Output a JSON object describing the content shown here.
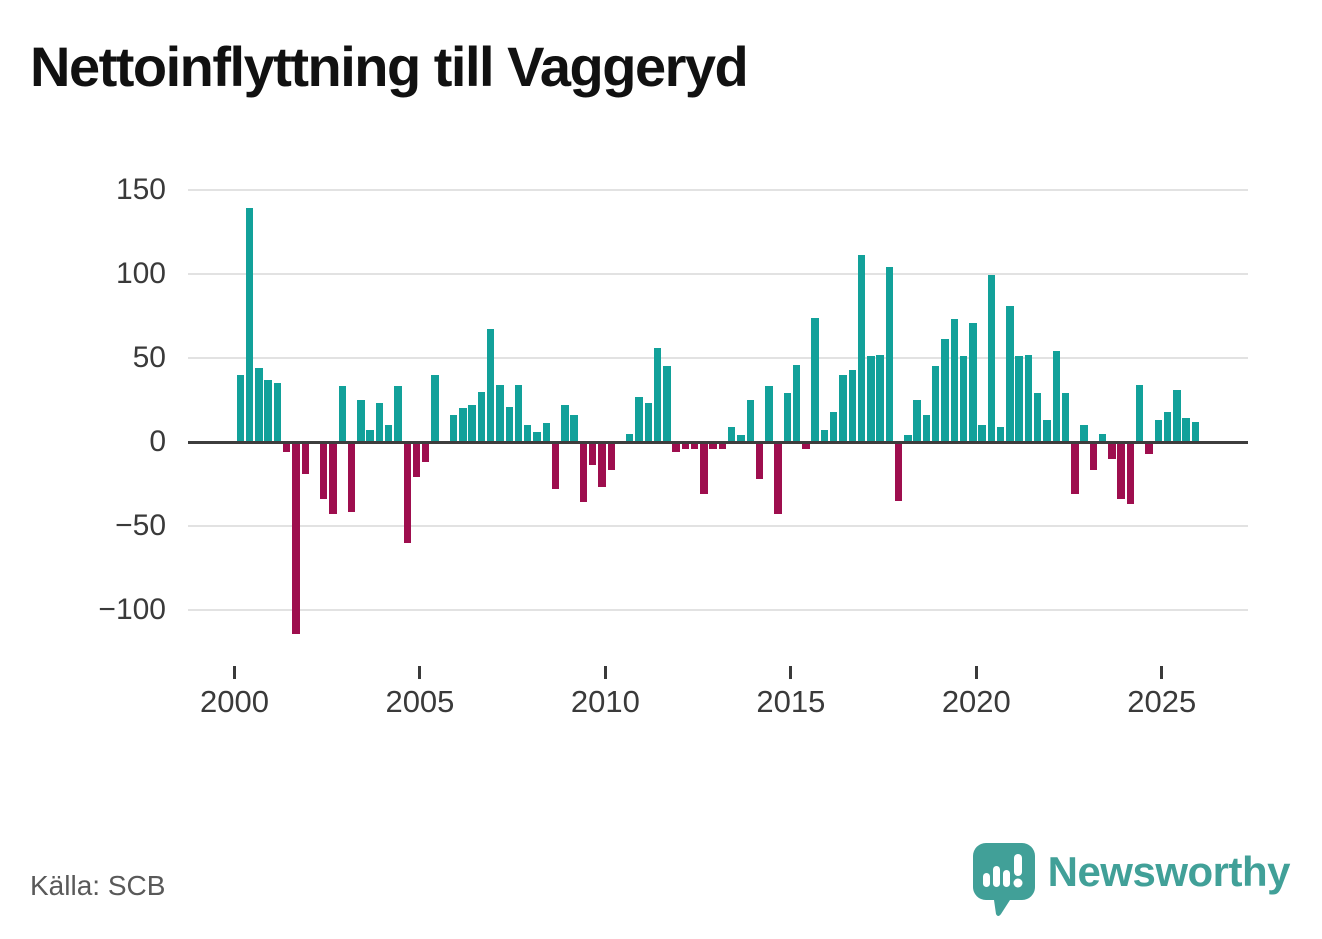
{
  "title": "Nettoinflyttning till Vaggeryd",
  "source": "Källa: SCB",
  "branding": {
    "wordmark": "Newsworthy",
    "logo_icon": "newsworthy-speech-bubble-chart-icon",
    "brand_color": "#41a098"
  },
  "colors": {
    "positive": "#12a19a",
    "negative": "#9e0e4e",
    "grid": "#e2e2e2",
    "axis": "#3d3d3d",
    "text": "#3a3a3a",
    "muted_text": "#595959"
  },
  "chart_data": {
    "type": "bar",
    "title": "Nettoinflyttning till Vaggeryd",
    "x_unit": "quarter",
    "series_by_year": [
      {
        "year": 2000,
        "q": [
          40,
          139,
          44,
          37
        ]
      },
      {
        "year": 2001,
        "q": [
          35,
          -5,
          -113,
          -18
        ]
      },
      {
        "year": 2002,
        "q": [
          0,
          -33,
          -42,
          33
        ]
      },
      {
        "year": 2003,
        "q": [
          -41,
          25,
          7,
          23
        ]
      },
      {
        "year": 2004,
        "q": [
          10,
          33,
          -59,
          -20
        ]
      },
      {
        "year": 2005,
        "q": [
          -11,
          40,
          0,
          16
        ]
      },
      {
        "year": 2006,
        "q": [
          20,
          22,
          30,
          67
        ]
      },
      {
        "year": 2007,
        "q": [
          34,
          21,
          34,
          10
        ]
      },
      {
        "year": 2008,
        "q": [
          6,
          11,
          -27,
          22
        ]
      },
      {
        "year": 2009,
        "q": [
          16,
          -35,
          -13,
          -26
        ]
      },
      {
        "year": 2010,
        "q": [
          -16,
          0,
          5,
          27
        ]
      },
      {
        "year": 2011,
        "q": [
          23,
          56,
          45,
          -5
        ]
      },
      {
        "year": 2012,
        "q": [
          -3,
          -3,
          -30,
          -3
        ]
      },
      {
        "year": 2013,
        "q": [
          -3,
          9,
          4,
          25
        ]
      },
      {
        "year": 2014,
        "q": [
          -21,
          33,
          -42,
          29
        ]
      },
      {
        "year": 2015,
        "q": [
          46,
          -3,
          74,
          7
        ]
      },
      {
        "year": 2016,
        "q": [
          18,
          40,
          43,
          111
        ]
      },
      {
        "year": 2017,
        "q": [
          51,
          52,
          104,
          -34
        ]
      },
      {
        "year": 2018,
        "q": [
          4,
          25,
          16,
          45
        ]
      },
      {
        "year": 2019,
        "q": [
          61,
          73,
          51,
          71
        ]
      },
      {
        "year": 2020,
        "q": [
          10,
          99,
          9,
          81
        ]
      },
      {
        "year": 2021,
        "q": [
          51,
          52,
          29,
          13
        ]
      },
      {
        "year": 2022,
        "q": [
          54,
          29,
          -30,
          10
        ]
      },
      {
        "year": 2023,
        "q": [
          -16,
          5,
          -9,
          -33
        ]
      },
      {
        "year": 2024,
        "q": [
          -36,
          34,
          -6,
          13
        ]
      },
      {
        "year": 2025,
        "q": [
          18,
          31,
          14,
          12
        ]
      }
    ],
    "y_ticks": [
      150,
      100,
      50,
      0,
      -50,
      -100
    ],
    "y_tick_labels": [
      "150",
      "100",
      "50",
      "0",
      "−50",
      "−100"
    ],
    "x_ticks": [
      2000,
      2005,
      2010,
      2015,
      2020,
      2025
    ],
    "ylim": [
      -113,
      150
    ],
    "grid": "horizontal",
    "legend": "none",
    "xlabel": "",
    "ylabel": ""
  }
}
